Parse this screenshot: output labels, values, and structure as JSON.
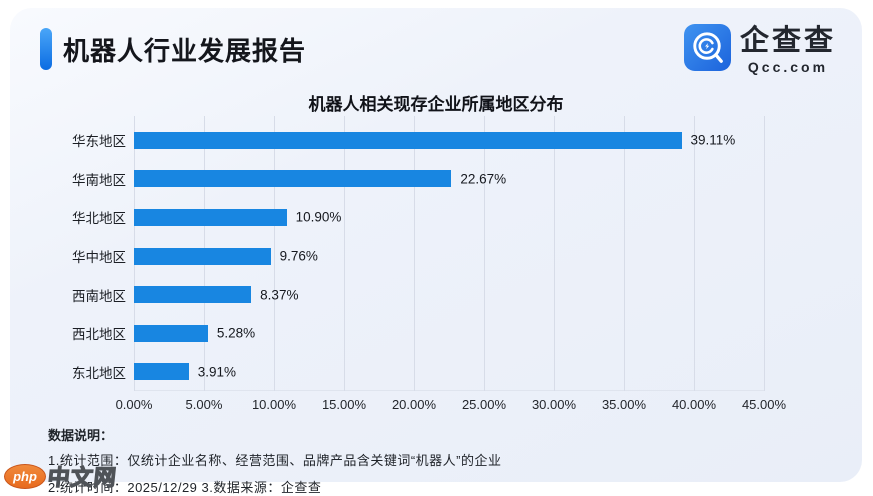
{
  "header": {
    "title": "机器人行业发展报告",
    "logo": {
      "name_cn": "企查查",
      "name_en": "Qcc.com"
    }
  },
  "chart_data": {
    "type": "bar",
    "orientation": "horizontal",
    "title": "机器人相关现存企业所属地区分布",
    "categories": [
      "华东地区",
      "华南地区",
      "华北地区",
      "华中地区",
      "西南地区",
      "西北地区",
      "东北地区"
    ],
    "values": [
      39.11,
      22.67,
      10.9,
      9.76,
      8.37,
      5.28,
      3.91
    ],
    "value_labels": [
      "39.11%",
      "22.67%",
      "10.90%",
      "9.76%",
      "8.37%",
      "5.28%",
      "3.91%"
    ],
    "x_ticks": [
      "0.00%",
      "5.00%",
      "10.00%",
      "15.00%",
      "20.00%",
      "25.00%",
      "30.00%",
      "35.00%",
      "40.00%",
      "45.00%"
    ],
    "xlim": [
      0,
      45
    ],
    "grid": "vertical",
    "legend": "none",
    "bar_color": "#1886e1"
  },
  "footer": {
    "heading": "数据说明：",
    "notes": [
      "1.统计范围：仅统计企业名称、经营范围、品牌产品含关键词“机器人”的企业",
      "2.统计时间：2025/12/29  3.数据来源：企查查"
    ]
  },
  "watermark": {
    "badge": "php",
    "text": "中文网"
  },
  "colors": {
    "accent_top": "#4aa6f8",
    "accent_bottom": "#0b6ce2",
    "bar": "#1886e1",
    "card_bg": "#edf1f9",
    "gridline": "#d7dce8"
  }
}
